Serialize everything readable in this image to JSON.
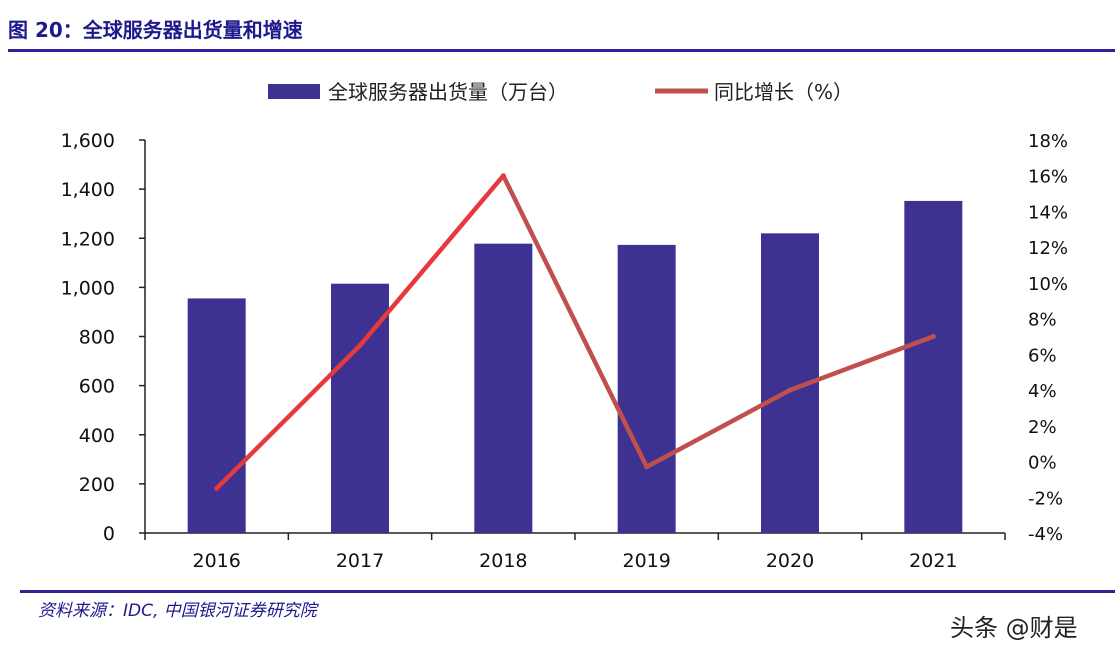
{
  "figure": {
    "title": "图 20：全球服务器出货量和增速",
    "source": "资料来源：IDC, 中国银河证券研究院",
    "watermark": "头条 @财是"
  },
  "chart_data": {
    "type": "bar+line",
    "categories": [
      "2016",
      "2017",
      "2018",
      "2019",
      "2020",
      "2021"
    ],
    "series": [
      {
        "name": "全球服务器出货量（万台）",
        "type": "bar",
        "axis": "left",
        "color": "#3d3291",
        "values": [
          955,
          1015,
          1178,
          1173,
          1220,
          1352
        ]
      },
      {
        "name": "同比增长（%）",
        "type": "line",
        "axis": "right",
        "color": "#c0504d",
        "highlight_color": "#e8383d",
        "values": [
          -1.5,
          6.5,
          16.0,
          -0.3,
          4.0,
          7.0
        ]
      }
    ],
    "y_left": {
      "min": 0,
      "max": 1600,
      "step": 200,
      "tick_labels": [
        "0",
        "200",
        "400",
        "600",
        "800",
        "1,000",
        "1,200",
        "1,400",
        "1,600"
      ]
    },
    "y_right": {
      "min": -4,
      "max": 18,
      "step": 2,
      "tick_labels": [
        "-4%",
        "-2%",
        "0%",
        "2%",
        "4%",
        "6%",
        "8%",
        "10%",
        "12%",
        "14%",
        "16%",
        "18%"
      ]
    },
    "legend_position": "top-center",
    "grid": false
  }
}
